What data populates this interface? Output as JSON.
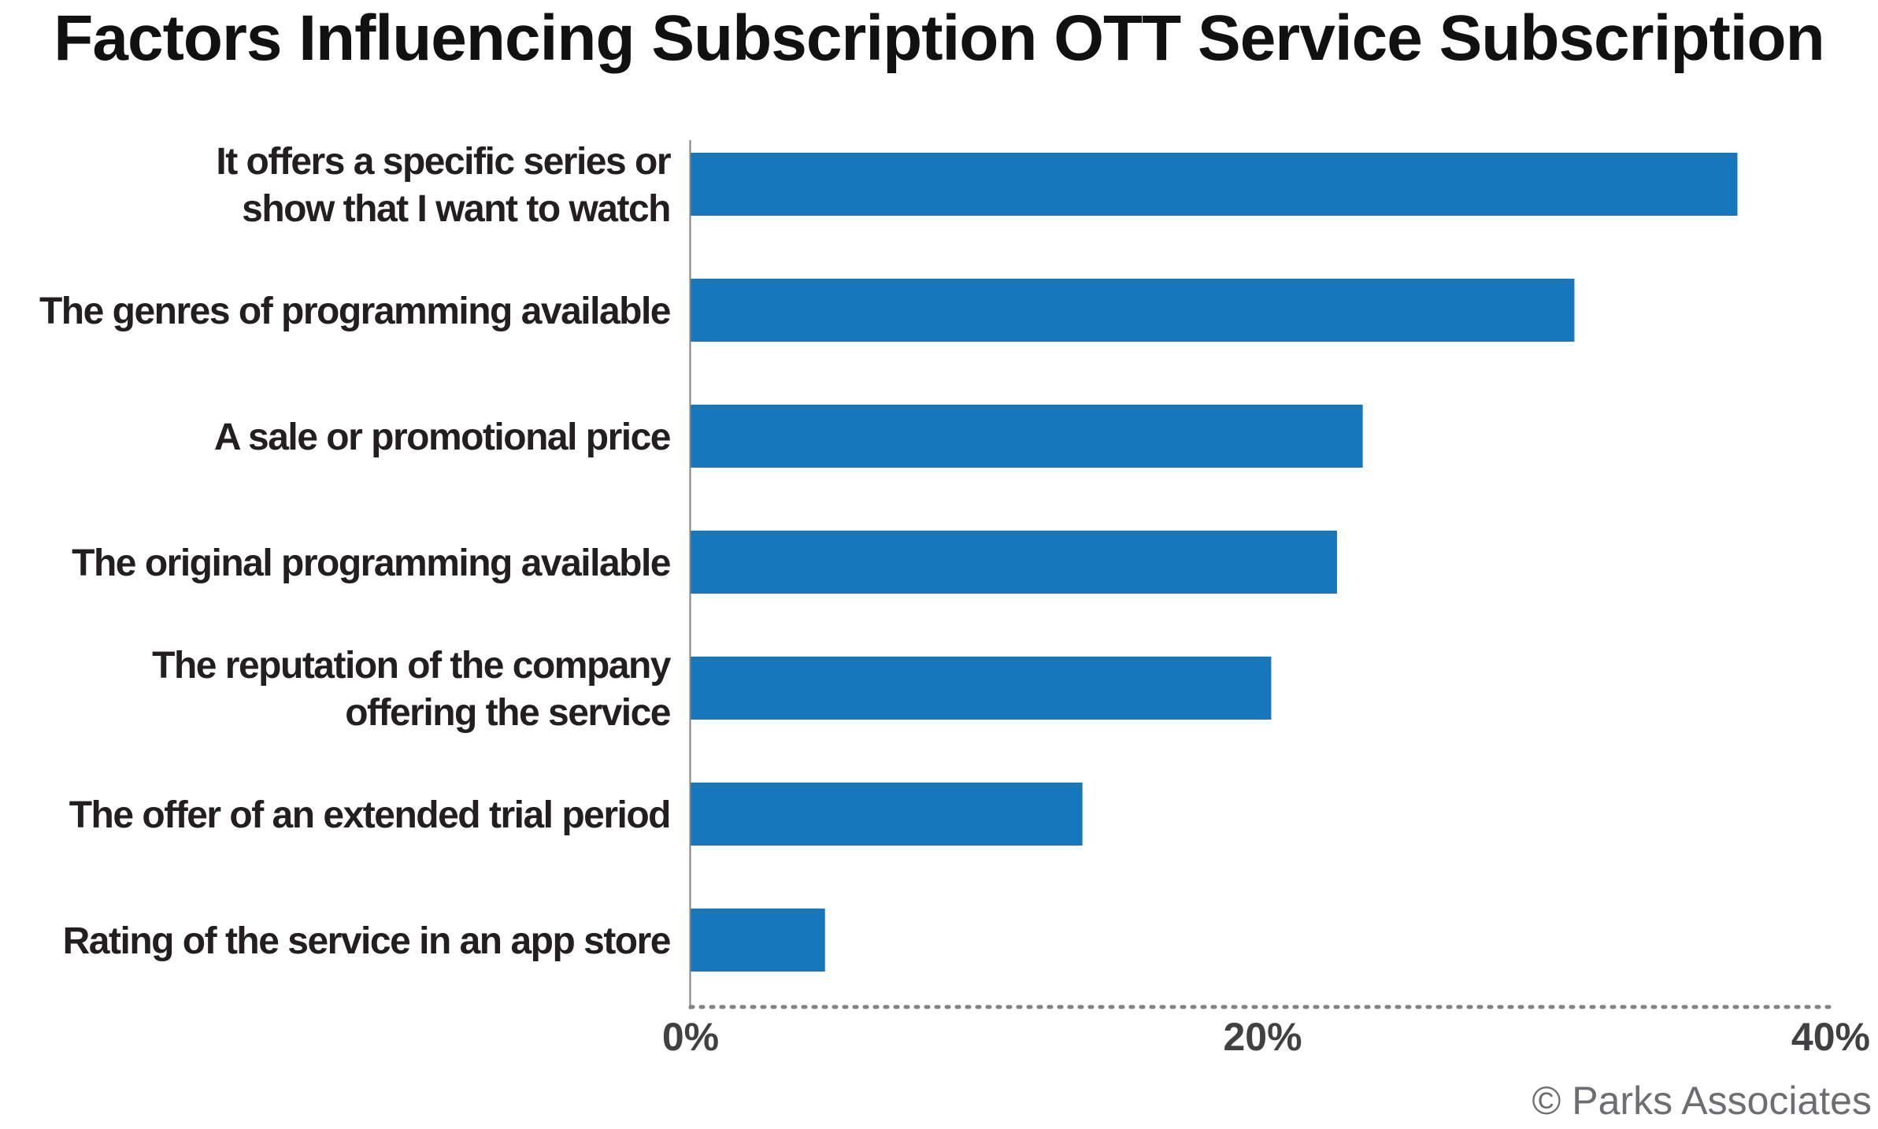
{
  "credit": "© Parks Associates",
  "colors": {
    "bar": "#1777bc",
    "axis": "#808285",
    "label": "#231f20",
    "tick": "#414042",
    "credit": "#6d6e71"
  },
  "chart_data": {
    "type": "bar",
    "orientation": "horizontal",
    "title": "Factors Influencing Subscription OTT Service Subscription",
    "xlabel": "",
    "ylabel": "",
    "categories": [
      [
        "It offers a specific series or",
        "show that I want to watch"
      ],
      [
        "The genres of programming available"
      ],
      [
        "A sale or promotional price"
      ],
      [
        "The original programming available"
      ],
      [
        "The reputation of the company",
        "offering the service"
      ],
      [
        "The offer of an extended trial period"
      ],
      [
        "Rating of the service in an app store"
      ]
    ],
    "values": [
      36.6,
      30.9,
      23.5,
      22.6,
      20.3,
      13.7,
      4.7
    ],
    "unit": "%",
    "xlim": [
      0,
      40
    ],
    "xticks": [
      0,
      20,
      40
    ],
    "xtick_labels": [
      "0%",
      "20%",
      "40%"
    ],
    "grid": false,
    "legend": "none"
  }
}
